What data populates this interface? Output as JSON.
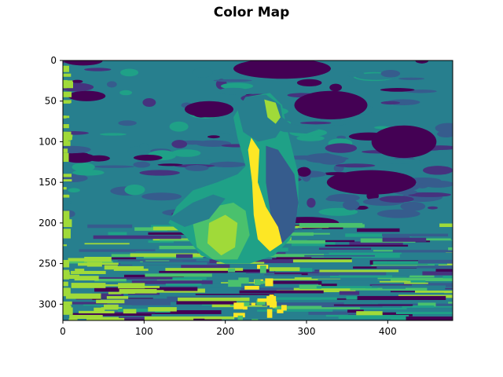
{
  "chart_data": {
    "type": "heatmap",
    "title": "Color Map",
    "xlabel": "",
    "ylabel": "",
    "xlim": [
      0,
      480
    ],
    "ylim": [
      320,
      0
    ],
    "x_ticks": [
      0,
      100,
      200,
      300,
      400
    ],
    "y_ticks": [
      0,
      50,
      100,
      150,
      200,
      250,
      300
    ],
    "grid": false,
    "colormap": "viridis",
    "levels": 8,
    "palette": [
      "#440154",
      "#46327e",
      "#365c8d",
      "#277f8e",
      "#1fa187",
      "#4ac16d",
      "#a0da39",
      "#fde725"
    ],
    "subject": "duck on water"
  }
}
